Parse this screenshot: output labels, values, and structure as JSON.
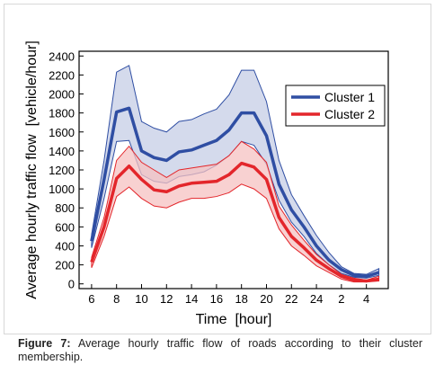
{
  "chart_data": {
    "type": "line",
    "x": [
      6,
      7,
      8,
      9,
      10,
      11,
      12,
      13,
      14,
      15,
      16,
      17,
      18,
      19,
      20,
      21,
      22,
      23,
      24,
      25,
      26,
      27,
      28,
      29
    ],
    "xlim": [
      5,
      29.75
    ],
    "xticks": [
      6,
      8,
      10,
      12,
      14,
      16,
      18,
      20,
      22,
      24,
      {
        "value": 26,
        "label": "2"
      },
      {
        "value": 28,
        "label": "4"
      }
    ],
    "ylim": [
      -50,
      2450
    ],
    "yticks": [
      0,
      200,
      400,
      600,
      800,
      1000,
      1200,
      1400,
      1600,
      1800,
      2000,
      2200,
      2400
    ],
    "xlabel": "Time  [hour]",
    "ylabel": "Average hourly traffic flow  [vehicle/hour]",
    "legend": "upper right",
    "series": [
      {
        "name": "Cluster 1",
        "color": "#2f4ea3",
        "band_color": "#c5cde6",
        "values": [
          450,
          1100,
          1810,
          1850,
          1400,
          1330,
          1300,
          1390,
          1410,
          1460,
          1510,
          1620,
          1800,
          1800,
          1560,
          1050,
          780,
          600,
          400,
          250,
          150,
          90,
          80,
          120
        ],
        "upper": [
          520,
          1300,
          2230,
          2300,
          1710,
          1640,
          1600,
          1710,
          1730,
          1790,
          1840,
          1990,
          2250,
          2250,
          1920,
          1300,
          940,
          720,
          510,
          330,
          180,
          110,
          100,
          160
        ],
        "lower": [
          380,
          900,
          1500,
          1510,
          1150,
          1080,
          1060,
          1130,
          1150,
          1180,
          1250,
          1350,
          1500,
          1460,
          1260,
          880,
          650,
          500,
          320,
          200,
          110,
          70,
          60,
          90
        ]
      },
      {
        "name": "Cluster 2",
        "color": "#e3262b",
        "band_color": "#f6c2c2",
        "values": [
          230,
          600,
          1110,
          1240,
          1100,
          990,
          970,
          1030,
          1060,
          1070,
          1080,
          1150,
          1270,
          1230,
          1100,
          700,
          500,
          380,
          250,
          160,
          80,
          40,
          30,
          50
        ],
        "upper": [
          280,
          700,
          1300,
          1450,
          1280,
          1200,
          1120,
          1200,
          1220,
          1240,
          1260,
          1350,
          1500,
          1420,
          1280,
          820,
          620,
          460,
          310,
          200,
          100,
          60,
          40,
          80
        ],
        "lower": [
          170,
          500,
          920,
          1020,
          900,
          820,
          800,
          860,
          900,
          900,
          920,
          960,
          1050,
          1000,
          900,
          580,
          400,
          300,
          190,
          120,
          50,
          20,
          20,
          30
        ]
      }
    ]
  },
  "caption": {
    "label": "Figure 7:",
    "text": " Average hourly traffic flow of roads according to their cluster membership."
  }
}
